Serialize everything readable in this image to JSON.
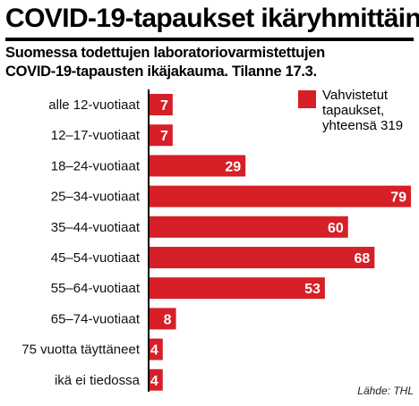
{
  "title": "COVID-19-tapaukset ikäryhmittäin",
  "subtitle_line1": "Suomessa todettujen laboratoriovarmistettujen",
  "subtitle_line2": "COVID-19-tapausten ikäjakauma. Tilanne 17.3.",
  "legend": {
    "text": "Vahvistetut tapaukset, yhteensä 319",
    "color": "#d61f26"
  },
  "source": "Lähde: THL",
  "colors": {
    "bar": "#d61f26",
    "axis": "#000000"
  },
  "chart_data": {
    "type": "bar",
    "orientation": "horizontal",
    "title": "COVID-19-tapaukset ikäryhmittäin",
    "categories": [
      "alle 12-vuotiaat",
      "12–17-vuotiaat",
      "18–24-vuotiaat",
      "25–34-vuotiaat",
      "35–44-vuotiaat",
      "45–54-vuotiaat",
      "55–64-vuotiaat",
      "65–74-vuotiaat",
      "75 vuotta täyttäneet",
      "ikä ei tiedossa"
    ],
    "values": [
      7,
      7,
      29,
      79,
      60,
      68,
      53,
      8,
      4,
      4
    ],
    "series": [
      {
        "name": "Vahvistetut tapaukset, yhteensä 319",
        "values": [
          7,
          7,
          29,
          79,
          60,
          68,
          53,
          8,
          4,
          4
        ]
      }
    ],
    "xlim": [
      0,
      79
    ],
    "grid": false,
    "legend_position": "top-right"
  }
}
